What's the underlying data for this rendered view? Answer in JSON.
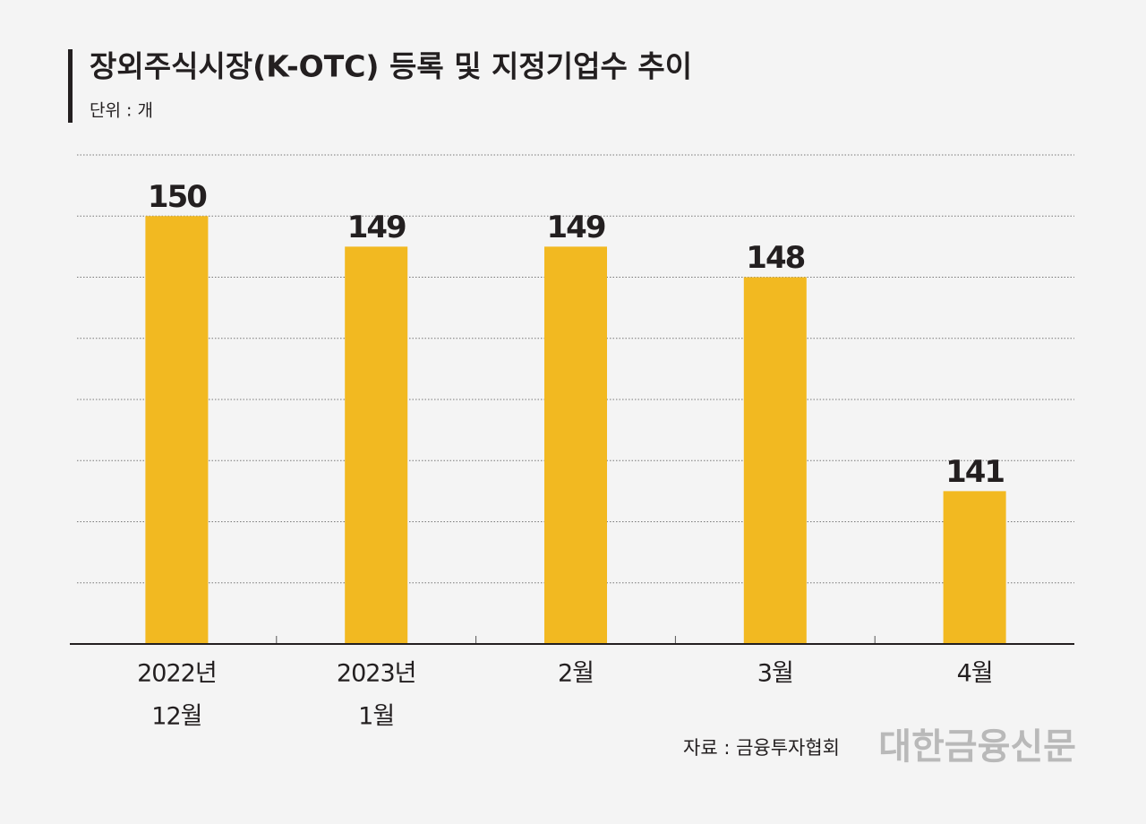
{
  "chart_data": {
    "type": "bar",
    "title": "장외주식시장(K-OTC) 등록 및 지정기업수 추이",
    "subtitle": "단위 : 개",
    "categories": [
      [
        "2022년",
        "12월"
      ],
      [
        "2023년",
        "1월"
      ],
      [
        "2월"
      ],
      [
        "3월"
      ],
      [
        "4월"
      ]
    ],
    "values": [
      150,
      149,
      149,
      148,
      141
    ],
    "color": "#f2b921",
    "ylim": [
      136,
      152
    ],
    "yticks": [
      136,
      138,
      140,
      142,
      144,
      146,
      148,
      150,
      152
    ],
    "grid": true,
    "source": "자료 : 금융투자협회",
    "logo": "대한금융신문"
  }
}
